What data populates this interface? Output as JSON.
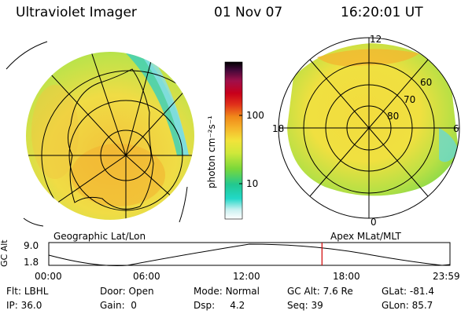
{
  "header": {
    "instrument": "Ultraviolet Imager",
    "date": "01 Nov 07",
    "time": "16:20:01 UT"
  },
  "left_map": {
    "caption": "Geographic Lat/Lon"
  },
  "right_map": {
    "caption": "Apex MLat/MLT",
    "mlt_labels": {
      "top": "12",
      "left": "18",
      "right": "6",
      "bottom": "0"
    },
    "lat_labels": [
      "60",
      "70",
      "80"
    ]
  },
  "colorbar": {
    "unit_label": "photon cm⁻²s⁻¹",
    "ticks": [
      "100",
      "10"
    ],
    "colors": [
      "#ffffff",
      "#c8f0f0",
      "#22d8c8",
      "#22c890",
      "#7ad83a",
      "#cfe83a",
      "#f2e33a",
      "#f5b42a",
      "#f08a1a",
      "#e0301a",
      "#c8001a",
      "#a0104a",
      "#400838",
      "#000000"
    ]
  },
  "altitude_plot": {
    "axis_label": "GC Alt",
    "y_ticks": [
      "9.0",
      "1.8"
    ],
    "x_ticks": [
      "00:00",
      "06:00",
      "12:00",
      "18:00",
      "23:59"
    ],
    "marker_color": "#d00000",
    "marker_time_fraction": 0.681
  },
  "status": {
    "flt_label": "Flt:",
    "flt_value": "LBHL",
    "ip_label": "IP:",
    "ip_value": "36.0",
    "door_label": "Door:",
    "door_value": "Open",
    "gain_label": "Gain:",
    "gain_value": "0",
    "mode_label": "Mode:",
    "mode_value": "Normal",
    "dsp_label": "Dsp:",
    "dsp_value": "4.2",
    "gcalt_label": "GC Alt:",
    "gcalt_value": "7.6 Re",
    "seq_label": "Seq:",
    "seq_value": "39",
    "glat_label": "GLat:",
    "glat_value": "-81.4",
    "glon_label": "GLon:",
    "glon_value": "85.7"
  }
}
